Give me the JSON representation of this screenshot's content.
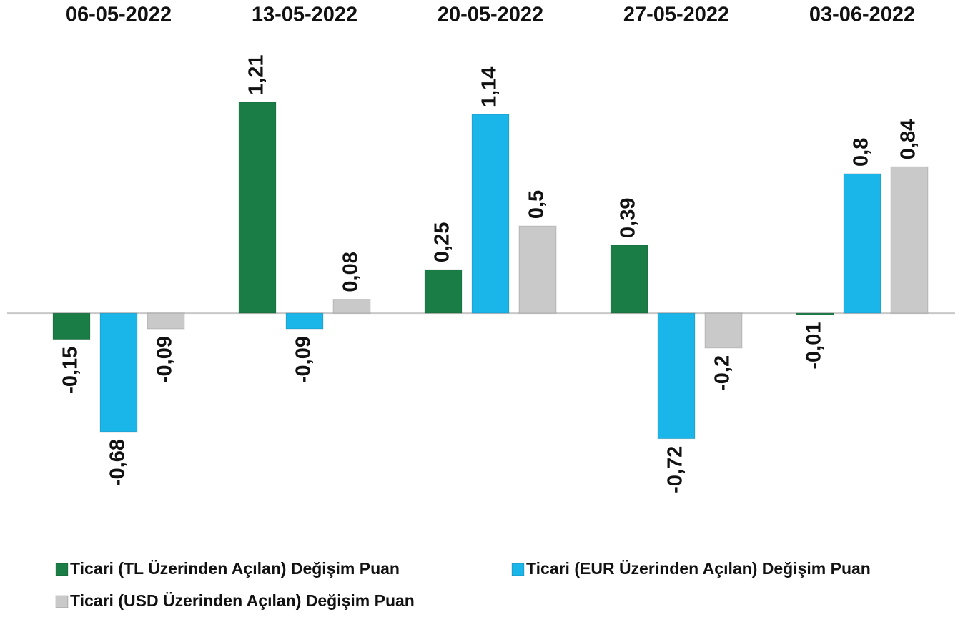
{
  "chart_data": {
    "type": "bar",
    "categories": [
      "06-05-2022",
      "13-05-2022",
      "20-05-2022",
      "27-05-2022",
      "03-06-2022"
    ],
    "series": [
      {
        "name": "Ticari (TL Üzerinden Açılan) Değişim Puan",
        "color": "#1a7d45",
        "values": [
          -0.15,
          1.21,
          0.25,
          0.39,
          -0.01
        ],
        "value_labels": [
          "-0,15",
          "1,21",
          "0,25",
          "0,39",
          "-0,01"
        ]
      },
      {
        "name": "Ticari (EUR Üzerinden Açılan) Değişim Puan",
        "color": "#1ab6ea",
        "values": [
          -0.68,
          -0.09,
          1.14,
          -0.72,
          0.8
        ],
        "value_labels": [
          "-0,68",
          "-0,09",
          "1,14",
          "-0,72",
          "0,8"
        ]
      },
      {
        "name": "Ticari (USD Üzerinden Açılan) Değişim Puan",
        "color": "#c9c9c9",
        "values": [
          -0.09,
          0.08,
          0.5,
          -0.2,
          0.84
        ],
        "value_labels": [
          "-0,09",
          "0,08",
          "0,5",
          "-0,2",
          "0,84"
        ]
      }
    ],
    "ylim": [
      -1.25,
      1.55
    ]
  }
}
